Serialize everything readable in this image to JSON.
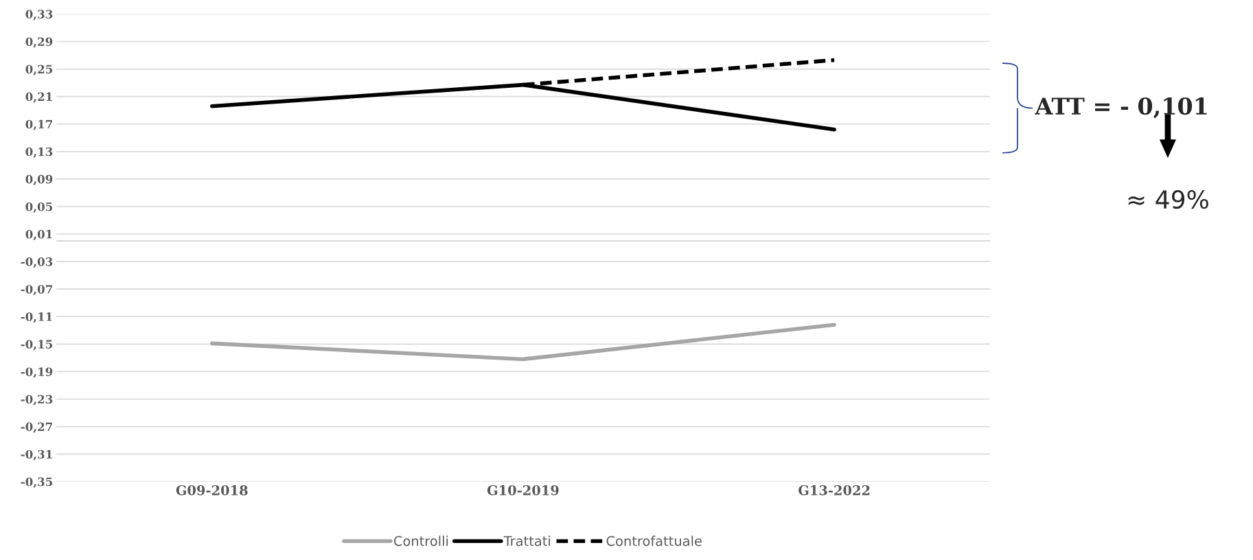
{
  "chart_data": {
    "type": "line",
    "categories": [
      "G09-2018",
      "G10-2019",
      "G13-2022"
    ],
    "series": [
      {
        "name": "Controlli",
        "color": "#a6a6a6",
        "values": [
          -0.149,
          -0.172,
          -0.122
        ],
        "line_style": "solid"
      },
      {
        "name": "Trattati",
        "color": "#000000",
        "values": [
          0.196,
          0.227,
          0.162
        ],
        "line_style": "solid"
      },
      {
        "name": "Controfattuale",
        "color": "#000000",
        "values": [
          null,
          0.227,
          0.263
        ],
        "line_style": "dashed"
      }
    ],
    "ylim": [
      -0.35,
      0.33
    ],
    "yticks": [
      {
        "value": 0.33,
        "label": "0,33"
      },
      {
        "value": 0.29,
        "label": "0,29"
      },
      {
        "value": 0.25,
        "label": "0,25"
      },
      {
        "value": 0.21,
        "label": "0,21"
      },
      {
        "value": 0.17,
        "label": "0,17"
      },
      {
        "value": 0.13,
        "label": "0,13"
      },
      {
        "value": 0.09,
        "label": "0,09"
      },
      {
        "value": 0.05,
        "label": "0,05"
      },
      {
        "value": 0.01,
        "label": "0,01"
      },
      {
        "value": -0.03,
        "label": "-0,03"
      },
      {
        "value": -0.07,
        "label": "-0,07"
      },
      {
        "value": -0.11,
        "label": "-0,11"
      },
      {
        "value": -0.15,
        "label": "-0,15"
      },
      {
        "value": -0.19,
        "label": "-0,19"
      },
      {
        "value": -0.23,
        "label": "-0,23"
      },
      {
        "value": -0.27,
        "label": "-0,27"
      },
      {
        "value": -0.31,
        "label": "-0,31"
      },
      {
        "value": -0.35,
        "label": "-0,35"
      }
    ],
    "ref_lines": [
      {
        "axis": "y",
        "value": 0,
        "color": "#d9d9d9"
      }
    ],
    "grid": "y",
    "legend": "bottom",
    "marker": "none",
    "annotations": [
      "ATT = - 0,101",
      "≈ 49%"
    ]
  }
}
